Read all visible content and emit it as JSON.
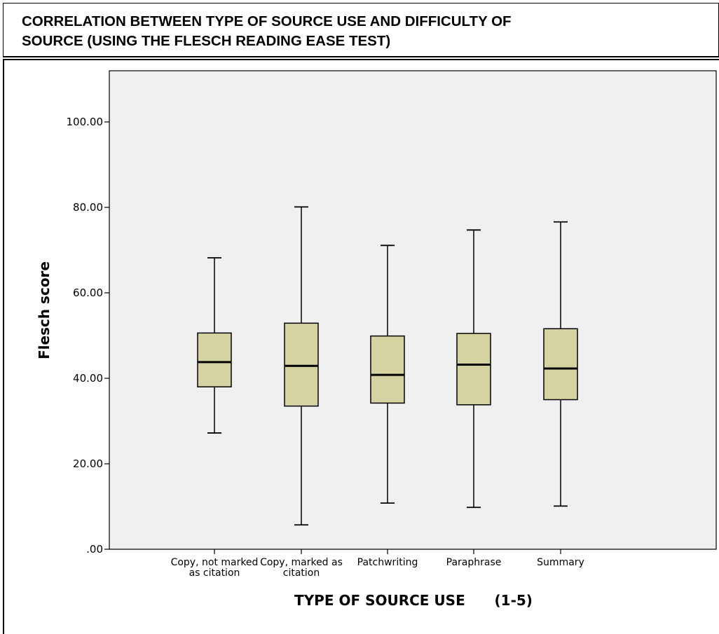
{
  "header": {
    "title": "CORRELATION BETWEEN TYPE OF SOURCE USE AND DIFFICULTY OF\nSOURCE (USING THE FLESCH READING EASE TEST)"
  },
  "chart_data": {
    "type": "boxplot",
    "xlabel": "TYPE OF SOURCE USE      (1-5)",
    "ylabel": "Flesch score",
    "ylim": [
      0,
      110
    ],
    "yticks": [
      0,
      20,
      40,
      60,
      80,
      100
    ],
    "ytick_labels": [
      ".00",
      "20.00",
      "40.00",
      "60.00",
      "80.00",
      "100.00"
    ],
    "grid": false,
    "box_color": "#d6d3a3",
    "plot_background": "#f0f0f0",
    "categories": [
      [
        "Copy, not marked",
        "as citation"
      ],
      [
        "Copy, marked as",
        "citation"
      ],
      [
        "Patchwriting"
      ],
      [
        "Paraphrase"
      ],
      [
        "Summary"
      ]
    ],
    "boxes": [
      {
        "min": 27.2,
        "q1": 38.0,
        "median": 43.8,
        "q3": 50.6,
        "max": 68.2
      },
      {
        "min": 5.7,
        "q1": 33.5,
        "median": 42.9,
        "q3": 52.9,
        "max": 80.1
      },
      {
        "min": 10.8,
        "q1": 34.2,
        "median": 40.8,
        "q3": 49.9,
        "max": 71.1
      },
      {
        "min": 9.8,
        "q1": 33.8,
        "median": 43.2,
        "q3": 50.5,
        "max": 74.7
      },
      {
        "min": 10.1,
        "q1": 35.0,
        "median": 42.3,
        "q3": 51.6,
        "max": 76.6
      }
    ]
  }
}
